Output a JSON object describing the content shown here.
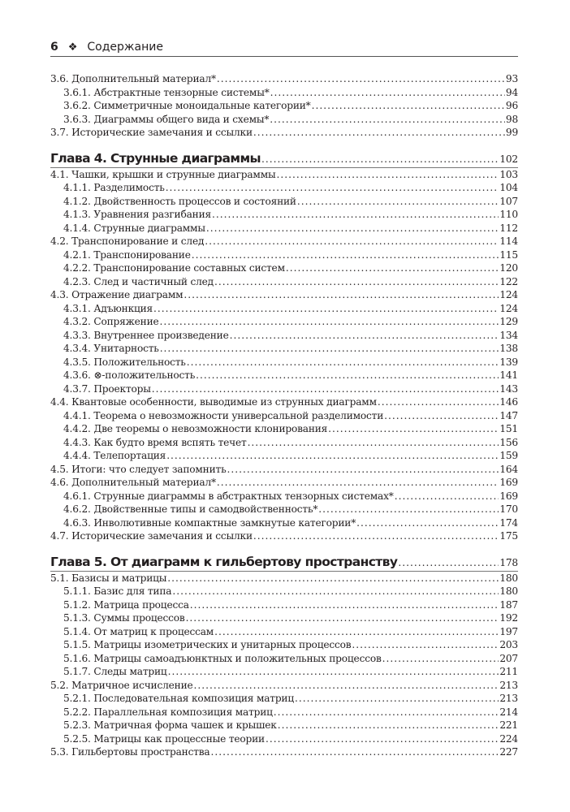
{
  "header": {
    "page_number": "6",
    "ornament": "❖",
    "title": "Содержание"
  },
  "entries": [
    {
      "level": 1,
      "label": "3.6. Дополнительный материал*",
      "page": "93"
    },
    {
      "level": 2,
      "label": "3.6.1. Абстрактные тензорные системы*",
      "page": "94"
    },
    {
      "level": 2,
      "label": "3.6.2. Симметричные моноидальные категории*",
      "page": "96"
    },
    {
      "level": 2,
      "label": "3.6.3. Диаграммы общего вида и схемы*",
      "page": "98"
    },
    {
      "level": 1,
      "label": "3.7. Исторические замечания и ссылки",
      "page": "99"
    },
    {
      "level": 0,
      "label": "Глава 4. Струнные диаграммы",
      "page": "102"
    },
    {
      "level": 1,
      "label": "4.1. Чашки, крышки и струнные диаграммы",
      "page": "103"
    },
    {
      "level": 2,
      "label": "4.1.1. Разделимость",
      "page": "104"
    },
    {
      "level": 2,
      "label": "4.1.2. Двойственность процессов и состояний",
      "page": "107"
    },
    {
      "level": 2,
      "label": "4.1.3. Уравнения разгибания",
      "page": "110"
    },
    {
      "level": 2,
      "label": "4.1.4. Струнные диаграммы",
      "page": "112"
    },
    {
      "level": 1,
      "label": "4.2. Транспонирование и след",
      "page": "114"
    },
    {
      "level": 2,
      "label": "4.2.1. Транспонирование",
      "page": "115"
    },
    {
      "level": 2,
      "label": "4.2.2. Транспонирование составных систем",
      "page": "120"
    },
    {
      "level": 2,
      "label": "4.2.3. След и частичный след",
      "page": "122"
    },
    {
      "level": 1,
      "label": "4.3. Отражение диаграмм",
      "page": "124"
    },
    {
      "level": 2,
      "label": "4.3.1. Адъюнкция",
      "page": "124"
    },
    {
      "level": 2,
      "label": "4.3.2. Сопряжение",
      "page": "129"
    },
    {
      "level": 2,
      "label": "4.3.3. Внутреннее произведение",
      "page": "134"
    },
    {
      "level": 2,
      "label": "4.3.4. Унитарность",
      "page": "138"
    },
    {
      "level": 2,
      "label": "4.3.5. Положительность",
      "page": "139"
    },
    {
      "level": 2,
      "label": "4.3.6. ⊗-положительность",
      "page": "141"
    },
    {
      "level": 2,
      "label": "4.3.7. Проекторы",
      "page": "143"
    },
    {
      "level": 1,
      "label": "4.4. Квантовые особенности, выводимые из струнных диаграмм",
      "page": "146"
    },
    {
      "level": 2,
      "label": "4.4.1. Теорема о невозможности универсальной разделимости",
      "page": "147"
    },
    {
      "level": 2,
      "label": "4.4.2. Две теоремы о невозможности клонирования",
      "page": "151"
    },
    {
      "level": 2,
      "label": "4.4.3. Как будто время вспять течет",
      "page": "156"
    },
    {
      "level": 2,
      "label": "4.4.4. Телепортация",
      "page": "159"
    },
    {
      "level": 1,
      "label": "4.5. Итоги: что следует запомнить",
      "page": "164"
    },
    {
      "level": 1,
      "label": "4.6. Дополнительный материал*",
      "page": "169"
    },
    {
      "level": 2,
      "label": "4.6.1. Струнные диаграммы в абстрактных тензорных системах*",
      "page": "169"
    },
    {
      "level": 2,
      "label": "4.6.2. Двойственные типы и самодвойственность*",
      "page": "170"
    },
    {
      "level": 2,
      "label": "4.6.3. Инволютивные компактные замкнутые категории*",
      "page": "174"
    },
    {
      "level": 1,
      "label": "4.7. Исторические замечания и ссылки",
      "page": "175"
    },
    {
      "level": 0,
      "label": "Глава 5. От диаграмм к гильбертову пространству",
      "page": "178"
    },
    {
      "level": 1,
      "label": "5.1. Базисы и матрицы",
      "page": "180"
    },
    {
      "level": 2,
      "label": "5.1.1. Базис для типа",
      "page": "180"
    },
    {
      "level": 2,
      "label": "5.1.2. Матрица процесса",
      "page": "187"
    },
    {
      "level": 2,
      "label": "5.1.3. Суммы процессов",
      "page": "192"
    },
    {
      "level": 2,
      "label": "5.1.4. От матриц к процессам",
      "page": "197"
    },
    {
      "level": 2,
      "label": "5.1.5. Матрицы изометрических и унитарных процессов",
      "page": "203"
    },
    {
      "level": 2,
      "label": "5.1.6. Матрицы самоадъюнктных и положительных процессов",
      "page": "207"
    },
    {
      "level": 2,
      "label": "5.1.7. Следы матриц",
      "page": "211"
    },
    {
      "level": 1,
      "label": "5.2. Матричное исчисление",
      "page": "213"
    },
    {
      "level": 2,
      "label": "5.2.1. Последовательная композиция матриц",
      "page": "213"
    },
    {
      "level": 2,
      "label": "5.2.2. Параллельная композиция матриц",
      "page": "214"
    },
    {
      "level": 2,
      "label": "5.2.3. Матричная форма чашек и крышек",
      "page": "221"
    },
    {
      "level": 2,
      "label": "5.2.5. Матрицы как процессные теории",
      "page": "224"
    },
    {
      "level": 1,
      "label": "5.3. Гильбертовы пространства",
      "page": "227"
    }
  ]
}
